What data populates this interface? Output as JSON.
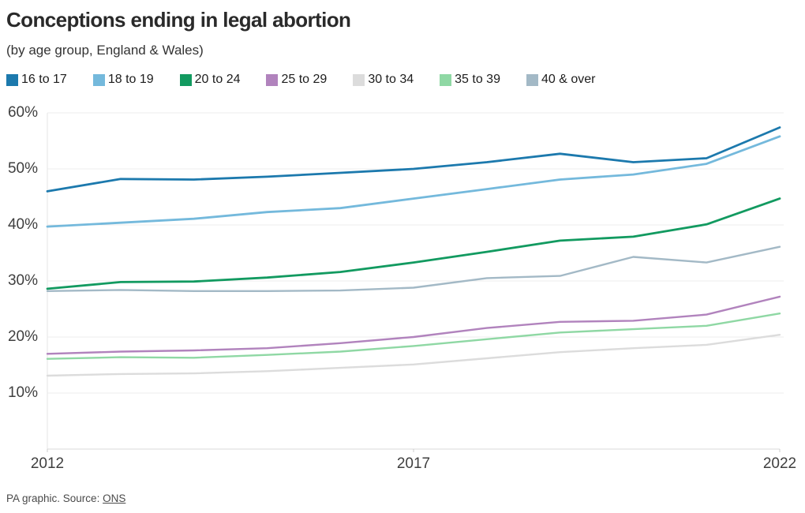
{
  "header": {
    "title": "Conceptions ending in legal abortion",
    "subtitle": "(by age group, England & Wales)"
  },
  "footer": {
    "text_before": "PA graphic. Source: ",
    "source_label": "ONS"
  },
  "colors": {
    "background": "#ffffff",
    "grid": "#ececec",
    "axis_line": "#d8d8d8",
    "left_axis_line": "#e6e6e6",
    "tick_mark": "#cccccc",
    "title_text": "#2a2a2a",
    "tick_text": "#3f3f3f"
  },
  "chart_data": {
    "type": "line",
    "title": "Conceptions ending in legal abortion",
    "subtitle": "(by age group, England & Wales)",
    "xlabel": "",
    "ylabel": "",
    "x": [
      2012,
      2013,
      2014,
      2015,
      2016,
      2017,
      2018,
      2019,
      2020,
      2021,
      2022
    ],
    "xtick_labels": [
      "2012",
      "2017",
      "2022"
    ],
    "xtick_indices": [
      0,
      5,
      10
    ],
    "ylim": [
      0,
      60
    ],
    "yticks": [
      10,
      20,
      30,
      40,
      50,
      60
    ],
    "ytick_suffix": "%",
    "grid": true,
    "legend_position": "top",
    "series": [
      {
        "name": "16 to 17",
        "color": "#1c79ad",
        "stroke_width": 2.8,
        "values": [
          46.0,
          48.2,
          48.1,
          48.6,
          49.3,
          50.0,
          51.2,
          52.7,
          51.2,
          51.9,
          57.4
        ]
      },
      {
        "name": "18 to 19",
        "color": "#74b9dc",
        "stroke_width": 2.8,
        "values": [
          39.7,
          40.4,
          41.1,
          42.3,
          43.0,
          44.7,
          46.4,
          48.1,
          49.0,
          50.9,
          55.8
        ]
      },
      {
        "name": "20 to 24",
        "color": "#129a60",
        "stroke_width": 2.8,
        "values": [
          28.6,
          29.8,
          29.9,
          30.6,
          31.6,
          33.3,
          35.2,
          37.2,
          37.9,
          40.1,
          44.7
        ]
      },
      {
        "name": "25 to 29",
        "color": "#b183bd",
        "stroke_width": 2.4,
        "values": [
          17.0,
          17.4,
          17.6,
          18.0,
          18.9,
          20.0,
          21.6,
          22.7,
          22.9,
          24.0,
          27.2
        ]
      },
      {
        "name": "30 to 34",
        "color": "#dcdcdc",
        "stroke_width": 2.4,
        "values": [
          13.1,
          13.4,
          13.5,
          13.9,
          14.5,
          15.1,
          16.2,
          17.3,
          18.0,
          18.6,
          20.4
        ]
      },
      {
        "name": "35 to 39",
        "color": "#8fd8a4",
        "stroke_width": 2.4,
        "values": [
          16.1,
          16.4,
          16.3,
          16.8,
          17.4,
          18.4,
          19.6,
          20.8,
          21.4,
          22.0,
          24.2
        ]
      },
      {
        "name": "40 & over",
        "color": "#a3b9c6",
        "stroke_width": 2.4,
        "values": [
          28.2,
          28.4,
          28.2,
          28.2,
          28.3,
          28.8,
          30.5,
          30.9,
          34.3,
          33.3,
          36.1
        ]
      }
    ],
    "draw_order": [
      "30 to 34",
      "40 & over",
      "35 to 39",
      "25 to 29",
      "20 to 24",
      "18 to 19",
      "16 to 17"
    ]
  }
}
